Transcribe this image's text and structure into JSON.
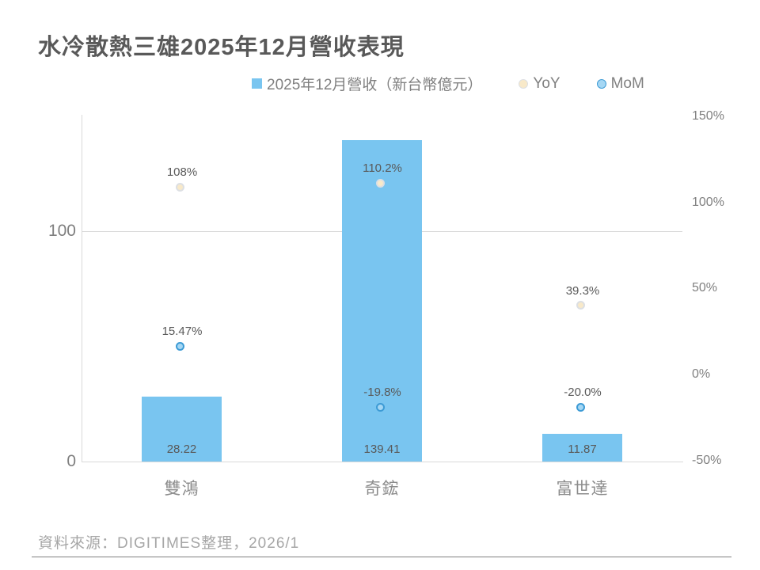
{
  "title": "水冷散熱三雄2025年12月營收表現",
  "source_note": "資料來源：DIGITIMES整理，2026/1",
  "legend": {
    "revenue": {
      "label": "2025年12月營收（新台幣億元）"
    },
    "yoy": {
      "label": "YoY"
    },
    "mom": {
      "label": "MoM"
    }
  },
  "colors": {
    "bar_fill": "#79C5F0",
    "yoy_fill": "#F8E9C9",
    "yoy_border": "#DCDFE3",
    "mom_fill": "#A5D7F4",
    "mom_border": "#3D9BD5",
    "title_text": "#595959",
    "axis_text": "#7F7F7F",
    "category_text": "#8C8C8C",
    "data_label_text": "#595959",
    "source_text": "#A6A6A6",
    "grid_line": "#D9D9D9",
    "divider_line": "#7F7F7F"
  },
  "chart_data": {
    "type": "bar",
    "categories": [
      "雙鴻",
      "奇鋐",
      "富世達"
    ],
    "series": [
      {
        "name": "2025年12月營收（新台幣億元）",
        "kind": "bar",
        "axis": "left",
        "values": [
          28.22,
          139.41,
          11.87
        ],
        "labels": [
          "28.22",
          "139.41",
          "11.87"
        ]
      },
      {
        "name": "YoY",
        "kind": "point",
        "axis": "right",
        "values": [
          108,
          110.2,
          39.3
        ],
        "labels": [
          "108%",
          "110.2%",
          "39.3%"
        ]
      },
      {
        "name": "MoM",
        "kind": "point",
        "axis": "right",
        "values": [
          15.47,
          -19.8,
          -20.0
        ],
        "labels": [
          "15.47%",
          "-19.8%",
          "-20.0%"
        ]
      }
    ],
    "left_axis": {
      "ticks": [
        {
          "value": 100,
          "label": "100"
        },
        {
          "value": 0,
          "label": "0"
        }
      ],
      "range": [
        0,
        150.5
      ]
    },
    "right_axis": {
      "ticks": [
        {
          "value": 150,
          "label": "150%"
        },
        {
          "value": 100,
          "label": "100%"
        },
        {
          "value": 50,
          "label": "50%"
        },
        {
          "value": 0,
          "label": "0%"
        },
        {
          "value": -50,
          "label": "-50%"
        }
      ],
      "range": [
        -50.6,
        150.9
      ]
    },
    "grid": "horizontal gridline at left-axis 100 and baseline at 0",
    "legend_position": "top"
  }
}
